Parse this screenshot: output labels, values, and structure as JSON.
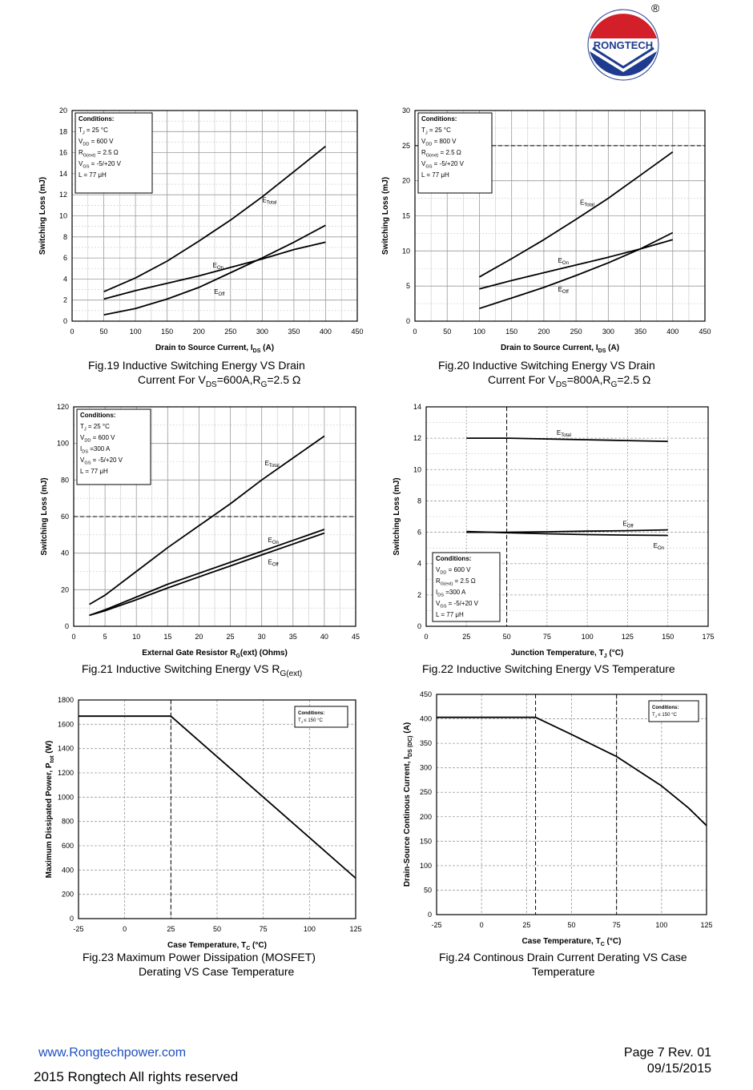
{
  "header": {
    "logo_text": "RONGTECH",
    "registered_mark": "®"
  },
  "colors": {
    "logo_red": "#d21f2a",
    "logo_blue": "#1f3b8f",
    "link_blue": "#1f4fbf"
  },
  "chart_data": [
    {
      "id": "fig19",
      "type": "line",
      "xlim": [
        0,
        450
      ],
      "ylim": [
        0,
        20
      ],
      "xticks": [
        0,
        50,
        100,
        150,
        200,
        250,
        300,
        350,
        400,
        450
      ],
      "yticks": [
        0,
        2,
        4,
        6,
        8,
        10,
        12,
        14,
        16,
        18,
        20
      ],
      "xlabel": "Drain to Source Current, I",
      "xlabel_sub": "DS",
      "xlabel_tail": " (A)",
      "ylabel": "Switching Loss (mJ)",
      "grid": true,
      "conditions": [
        "Conditions:",
        "T_J = 25 °C",
        "V_DD = 600 V",
        "R_G(ext) = 2.5 Ω",
        "V_GS = -5/+20 V",
        "L = 77 μH"
      ],
      "series": [
        {
          "name": "ETotal",
          "x": [
            50,
            100,
            150,
            200,
            250,
            300,
            350,
            400
          ],
          "y": [
            2.8,
            4.1,
            5.7,
            7.6,
            9.6,
            11.8,
            14.2,
            16.6
          ],
          "label_at": [
            300,
            11.3
          ]
        },
        {
          "name": "EOn",
          "x": [
            50,
            100,
            150,
            200,
            250,
            300,
            350,
            400
          ],
          "y": [
            2.1,
            2.9,
            3.6,
            4.3,
            5.1,
            5.9,
            6.8,
            7.5
          ],
          "label_at": [
            222,
            5.1
          ]
        },
        {
          "name": "EOff",
          "x": [
            50,
            100,
            150,
            200,
            250,
            300,
            350,
            400
          ],
          "y": [
            0.6,
            1.2,
            2.1,
            3.2,
            4.6,
            6.0,
            7.5,
            9.1
          ],
          "label_at": [
            224,
            2.6
          ]
        }
      ],
      "caption": [
        "Fig.19 Inductive Switching Energy VS Drain",
        "Current For V_DS=600A,R_G=2.5 Ω"
      ]
    },
    {
      "id": "fig20",
      "type": "line",
      "xlim": [
        0,
        450
      ],
      "ylim": [
        0,
        30
      ],
      "xticks": [
        0,
        50,
        100,
        150,
        200,
        250,
        300,
        350,
        400,
        450
      ],
      "yticks": [
        0,
        5,
        10,
        15,
        20,
        25,
        30
      ],
      "xlabel": "Drain to Source Current, I",
      "xlabel_sub": "DS",
      "xlabel_tail": " (A)",
      "ylabel": "Switching Loss (mJ)",
      "grid": true,
      "conditions": [
        "Conditions:",
        "T_J = 25 °C",
        "V_DD = 800 V",
        "R_G(ext) = 2.5 Ω",
        "V_GS = -5/+20 V",
        "L = 77 μH"
      ],
      "series": [
        {
          "name": "ETotal",
          "x": [
            100,
            150,
            200,
            250,
            300,
            350,
            400
          ],
          "y": [
            6.3,
            8.9,
            11.6,
            14.5,
            17.5,
            20.8,
            24.1
          ],
          "label_at": [
            256,
            16.6
          ]
        },
        {
          "name": "EOn",
          "x": [
            100,
            150,
            200,
            250,
            300,
            350,
            400
          ],
          "y": [
            4.6,
            5.8,
            6.9,
            8.0,
            9.1,
            10.3,
            11.6
          ],
          "label_at": [
            222,
            8.3
          ]
        },
        {
          "name": "EOff",
          "x": [
            100,
            150,
            200,
            250,
            300,
            350,
            400
          ],
          "y": [
            1.8,
            3.3,
            4.8,
            6.5,
            8.3,
            10.3,
            12.6
          ],
          "label_at": [
            222,
            4.2
          ]
        }
      ],
      "caption": [
        "Fig.20 Inductive Switching Energy VS Drain",
        "Current For V_DS=800A,R_G=2.5 Ω"
      ]
    },
    {
      "id": "fig21",
      "type": "line",
      "xlim": [
        0,
        45
      ],
      "ylim": [
        0,
        120
      ],
      "xticks": [
        0,
        5,
        10,
        15,
        20,
        25,
        30,
        35,
        40,
        45
      ],
      "yticks": [
        0,
        20,
        40,
        60,
        80,
        100,
        120
      ],
      "xlabel": "External Gate Resistor R",
      "xlabel_sub": "G",
      "xlabel_tail": "(ext) (Ohms)",
      "ylabel": "Switching Loss (mJ)",
      "grid": true,
      "conditions": [
        "Conditions:",
        "T_J = 25 °C",
        "V_DD = 600 V",
        "I_DS =300 A",
        "V_GS = -5/+20 V",
        "L = 77 μH"
      ],
      "series": [
        {
          "name": "ETotal",
          "x": [
            2.5,
            5,
            10,
            15,
            20,
            25,
            30,
            35,
            40
          ],
          "y": [
            12,
            17,
            30,
            43,
            55,
            67,
            80,
            92,
            104
          ],
          "label_at": [
            30.5,
            88
          ]
        },
        {
          "name": "EOn",
          "x": [
            2.5,
            5,
            10,
            15,
            20,
            25,
            30,
            35,
            40
          ],
          "y": [
            6,
            9,
            16,
            23,
            29,
            35,
            41,
            47,
            53
          ],
          "label_at": [
            31,
            46
          ]
        },
        {
          "name": "EOff",
          "x": [
            2.5,
            5,
            10,
            15,
            20,
            25,
            30,
            35,
            40
          ],
          "y": [
            6,
            8.5,
            14.5,
            21,
            27,
            33,
            39,
            45,
            51
          ],
          "label_at": [
            31,
            34
          ]
        }
      ],
      "caption": [
        "Fig.21 Inductive Switching Energy VS R_G(ext)"
      ]
    },
    {
      "id": "fig22",
      "type": "line",
      "xlim": [
        0,
        175
      ],
      "ylim": [
        0,
        14
      ],
      "xticks": [
        0,
        25,
        50,
        75,
        100,
        125,
        150,
        175
      ],
      "yticks": [
        0,
        2,
        4,
        6,
        8,
        10,
        12,
        14
      ],
      "xlabel": "Junction Temperature, T",
      "xlabel_sub": "J",
      "xlabel_tail": " (°C)",
      "ylabel": "Switching Loss (mJ)",
      "grid": true,
      "conditions": [
        "Conditions:",
        "V_DD = 600 V",
        "R_G(ext) = 2.5 Ω",
        "I_DS =300 A",
        "V_GS = -5/+20 V",
        "L = 77 μH"
      ],
      "series": [
        {
          "name": "ETotal",
          "x": [
            25,
            50,
            75,
            100,
            125,
            150
          ],
          "y": [
            12.0,
            12.0,
            11.95,
            11.9,
            11.85,
            11.8
          ],
          "label_at": [
            81,
            12.2
          ]
        },
        {
          "name": "EOff",
          "x": [
            25,
            50,
            75,
            100,
            125,
            150
          ],
          "y": [
            6.0,
            6.0,
            6.03,
            6.07,
            6.1,
            6.15
          ],
          "label_at": [
            122,
            6.4
          ]
        },
        {
          "name": "EOn",
          "x": [
            25,
            50,
            75,
            100,
            125,
            150
          ],
          "y": [
            6.05,
            5.97,
            5.9,
            5.85,
            5.82,
            5.8
          ],
          "label_at": [
            141,
            5.0
          ]
        }
      ],
      "caption": [
        "Fig.22  Inductive Switching Energy VS Temperature"
      ]
    },
    {
      "id": "fig23",
      "type": "line",
      "xlim": [
        -25,
        125
      ],
      "ylim": [
        0,
        1800
      ],
      "xticks": [
        -25,
        0,
        25,
        50,
        75,
        100,
        125
      ],
      "yticks": [
        0,
        200,
        400,
        600,
        800,
        1000,
        1200,
        1400,
        1600,
        1800
      ],
      "xlabel": "Case Temperature, T",
      "xlabel_sub": "C",
      "xlabel_tail": " (°C)",
      "ylabel": "Maximum Dissipated Power, P",
      "ylabel_sub": "tot",
      "ylabel_tail": " (W)",
      "grid": true,
      "conditions": [
        "Conditions:",
        "T_J ≤ 150 °C"
      ],
      "series": [
        {
          "name": "",
          "x": [
            -25,
            25,
            50,
            75,
            100,
            125
          ],
          "y": [
            1667,
            1667,
            1333,
            1000,
            667,
            333
          ]
        }
      ],
      "caption": [
        "Fig.23 Maximum Power Dissipation (MOSFET)",
        "Derating VS Case Temperature"
      ]
    },
    {
      "id": "fig24",
      "type": "line",
      "xlim": [
        -25,
        125
      ],
      "ylim": [
        0,
        450
      ],
      "xticks": [
        -25,
        0,
        25,
        50,
        75,
        100,
        125
      ],
      "yticks": [
        0,
        50,
        100,
        150,
        200,
        250,
        300,
        350,
        400,
        450
      ],
      "xlabel": "Case Temperature, T",
      "xlabel_sub": "C",
      "xlabel_tail": " (°C)",
      "ylabel": "Drain-Source Continous Current, I",
      "ylabel_sub": "DS (DC)",
      "ylabel_tail": " (A)",
      "grid": true,
      "conditions": [
        "Conditions:",
        "T_J ≤ 150 °C"
      ],
      "series": [
        {
          "name": "",
          "x": [
            -25,
            30,
            50,
            75,
            100,
            115,
            125
          ],
          "y": [
            403,
            403,
            368,
            323,
            263,
            218,
            182
          ]
        }
      ],
      "caption": [
        "Fig.24 Continous Drain Current Derating VS Case",
        "Temperature"
      ]
    }
  ],
  "footer": {
    "website": "www.Rongtechpower.com",
    "copyright": "2015 Rongtech All rights reserved",
    "page": "Page 7  Rev. 01",
    "date": "09/15/2015"
  }
}
